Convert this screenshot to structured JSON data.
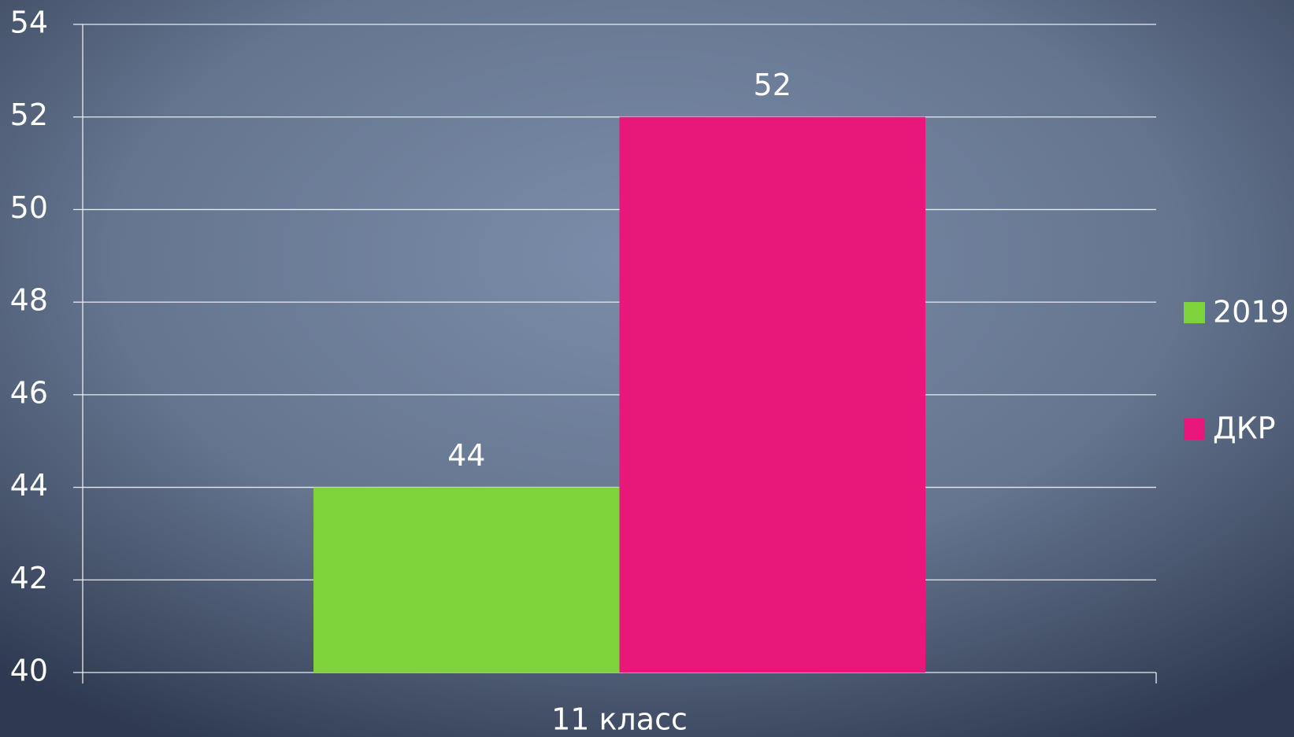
{
  "chart_data": {
    "type": "bar",
    "categories": [
      "11 класс"
    ],
    "series": [
      {
        "name": "2019",
        "color": "#7ed23a",
        "values": [
          44
        ]
      },
      {
        "name": "ДКР",
        "color": "#e8177a",
        "values": [
          52
        ]
      }
    ],
    "ylim": [
      40,
      54
    ],
    "yticks": [
      40,
      42,
      44,
      46,
      48,
      50,
      52,
      54
    ],
    "grid": true,
    "legend": "right"
  }
}
